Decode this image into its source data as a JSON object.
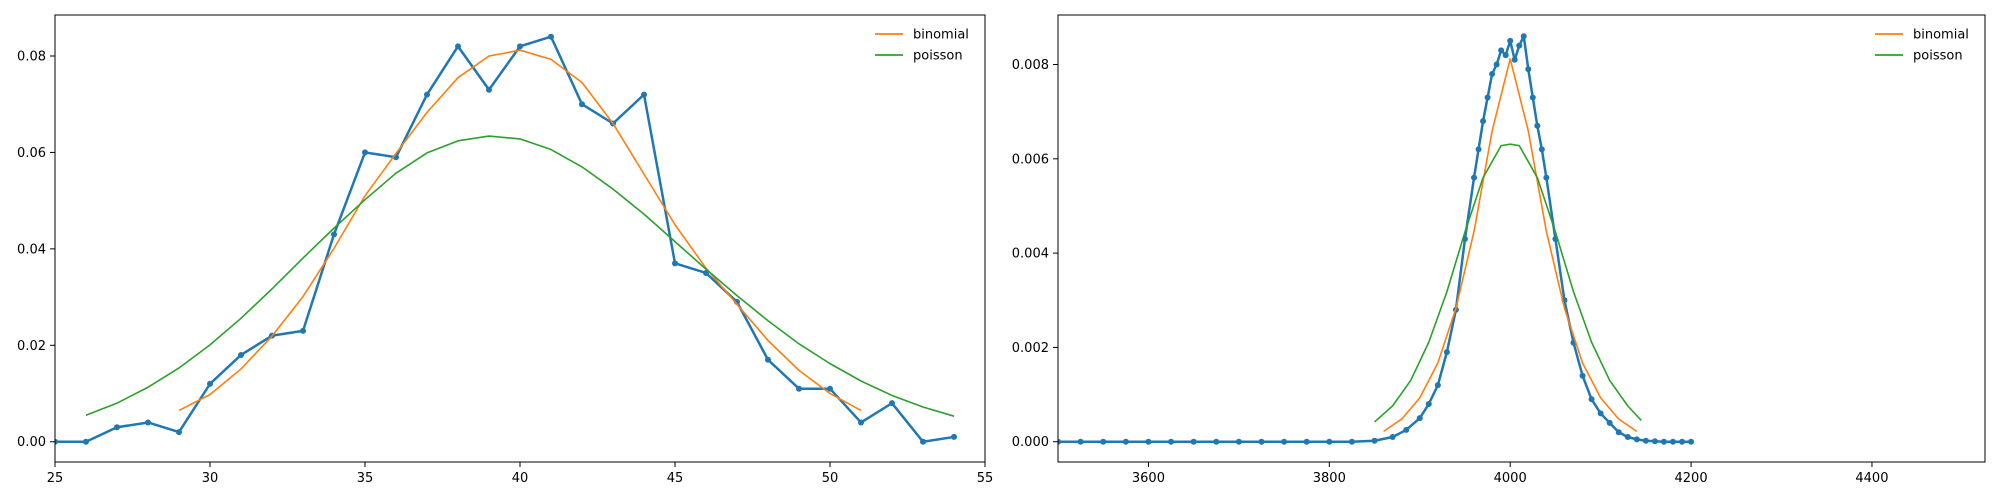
{
  "chart_data": [
    {
      "type": "line",
      "title": "",
      "xlabel": "",
      "ylabel": "",
      "xlim": [
        25,
        55
      ],
      "ylim": [
        -0.0042,
        0.0885
      ],
      "grid": false,
      "legend": {
        "position": "top-right",
        "entries": [
          "binomial",
          "poisson"
        ]
      },
      "x_ticks": [
        "25",
        "30",
        "35",
        "40",
        "45",
        "50",
        "55"
      ],
      "x_tick_values": [
        25,
        30,
        35,
        40,
        45,
        50,
        55
      ],
      "y_ticks": [
        "0.00",
        "0.02",
        "0.04",
        "0.06",
        "0.08"
      ],
      "y_tick_values": [
        0,
        0.02,
        0.04,
        0.06,
        0.08
      ],
      "series": [
        {
          "name": "",
          "color": "#1f77b4",
          "marker": true,
          "x": [
            25,
            26,
            27,
            28,
            29,
            30,
            31,
            32,
            33,
            34,
            35,
            36,
            37,
            38,
            39,
            40,
            41,
            42,
            43,
            44,
            45,
            46,
            47,
            48,
            49,
            50,
            51,
            52,
            53,
            54
          ],
          "y": [
            0.0,
            0.0,
            0.003,
            0.004,
            0.002,
            0.012,
            0.018,
            0.022,
            0.023,
            0.043,
            0.06,
            0.059,
            0.072,
            0.082,
            0.073,
            0.082,
            0.084,
            0.07,
            0.066,
            0.072,
            0.037,
            0.035,
            0.029,
            0.017,
            0.011,
            0.011,
            0.004,
            0.008,
            0.0,
            0.001
          ]
        },
        {
          "name": "binomial",
          "color": "#ff7f0e",
          "marker": false,
          "x": [
            29,
            30,
            31,
            32,
            33,
            34,
            35,
            36,
            37,
            38,
            39,
            40,
            41,
            42,
            43,
            44,
            45,
            46,
            47,
            48,
            49,
            50,
            51
          ],
          "y": [
            0.0065,
            0.0098,
            0.0151,
            0.0219,
            0.0301,
            0.0401,
            0.051,
            0.0598,
            0.0683,
            0.0755,
            0.08,
            0.0812,
            0.0793,
            0.0745,
            0.066,
            0.0555,
            0.045,
            0.036,
            0.0285,
            0.021,
            0.0148,
            0.01,
            0.0065
          ]
        },
        {
          "name": "poisson",
          "color": "#2ca02c",
          "marker": false,
          "x": [
            26,
            27,
            28,
            29,
            30,
            31,
            32,
            33,
            34,
            35,
            36,
            37,
            38,
            39,
            40,
            41,
            42,
            43,
            44,
            45,
            46,
            47,
            48,
            49,
            50,
            51,
            52,
            53,
            54
          ],
          "y": [
            0.0055,
            0.008,
            0.0113,
            0.0153,
            0.0201,
            0.0256,
            0.0317,
            0.0381,
            0.0443,
            0.0502,
            0.0557,
            0.0599,
            0.0624,
            0.0634,
            0.0628,
            0.0606,
            0.057,
            0.0524,
            0.0472,
            0.0415,
            0.0358,
            0.0303,
            0.0251,
            0.0203,
            0.0162,
            0.0126,
            0.0096,
            0.0072,
            0.0053
          ]
        }
      ]
    },
    {
      "type": "line",
      "title": "",
      "xlabel": "",
      "ylabel": "",
      "xlim": [
        3500,
        4525
      ],
      "ylim": [
        -0.00043,
        0.00905
      ],
      "grid": false,
      "legend": {
        "position": "top-right",
        "entries": [
          "binomial",
          "poisson"
        ]
      },
      "x_ticks": [
        "3600",
        "3800",
        "4000",
        "4200",
        "4400"
      ],
      "x_tick_values": [
        3600,
        3800,
        4000,
        4200,
        4400
      ],
      "y_ticks": [
        "0.000",
        "0.002",
        "0.004",
        "0.006",
        "0.008"
      ],
      "y_tick_values": [
        0,
        0.002,
        0.004,
        0.006,
        0.008
      ],
      "series": [
        {
          "name": "",
          "color": "#1f77b4",
          "marker": true,
          "x": [
            3500,
            3525,
            3550,
            3575,
            3600,
            3625,
            3650,
            3675,
            3700,
            3725,
            3750,
            3775,
            3800,
            3825,
            3850,
            3870,
            3885,
            3900,
            3910,
            3920,
            3930,
            3940,
            3950,
            3960,
            3965,
            3970,
            3975,
            3980,
            3985,
            3990,
            3995,
            4000,
            4005,
            4010,
            4015,
            4020,
            4025,
            4030,
            4035,
            4040,
            4050,
            4060,
            4070,
            4080,
            4090,
            4100,
            4110,
            4120,
            4130,
            4140,
            4150,
            4160,
            4170,
            4180,
            4190,
            4200
          ],
          "y": [
            0,
            0,
            0,
            0,
            0,
            0,
            0,
            0,
            0,
            0,
            0,
            0,
            0,
            0,
            2e-05,
            0.0001,
            0.00025,
            0.0005,
            0.0008,
            0.0012,
            0.0019,
            0.0028,
            0.0043,
            0.0056,
            0.0062,
            0.0068,
            0.0073,
            0.0078,
            0.008,
            0.0083,
            0.0082,
            0.0085,
            0.0081,
            0.0084,
            0.0086,
            0.0079,
            0.0073,
            0.0067,
            0.0062,
            0.0056,
            0.0043,
            0.003,
            0.0021,
            0.0014,
            0.0009,
            0.0006,
            0.0004,
            0.0002,
            0.0001,
            5e-05,
            2e-05,
            1e-05,
            0,
            0,
            0,
            0
          ]
        },
        {
          "name": "binomial",
          "color": "#ff7f0e",
          "marker": false,
          "x": [
            3860,
            3880,
            3900,
            3920,
            3940,
            3960,
            3980,
            4000,
            4020,
            4040,
            4060,
            4080,
            4100,
            4120,
            4140
          ],
          "y": [
            0.00022,
            0.00048,
            0.00093,
            0.00167,
            0.00283,
            0.00446,
            0.00659,
            0.00812,
            0.00659,
            0.00446,
            0.00283,
            0.00167,
            0.00093,
            0.00048,
            0.00022
          ]
        },
        {
          "name": "poisson",
          "color": "#2ca02c",
          "marker": false,
          "x": [
            3850,
            3870,
            3890,
            3910,
            3930,
            3950,
            3970,
            3990,
            4000,
            4010,
            4030,
            4050,
            4070,
            4090,
            4110,
            4130,
            4145
          ],
          "y": [
            0.00042,
            0.00076,
            0.0013,
            0.00211,
            0.00318,
            0.00445,
            0.0056,
            0.00628,
            0.00631,
            0.00628,
            0.0056,
            0.00445,
            0.00318,
            0.00211,
            0.0013,
            0.00076,
            0.00045
          ]
        }
      ]
    }
  ]
}
